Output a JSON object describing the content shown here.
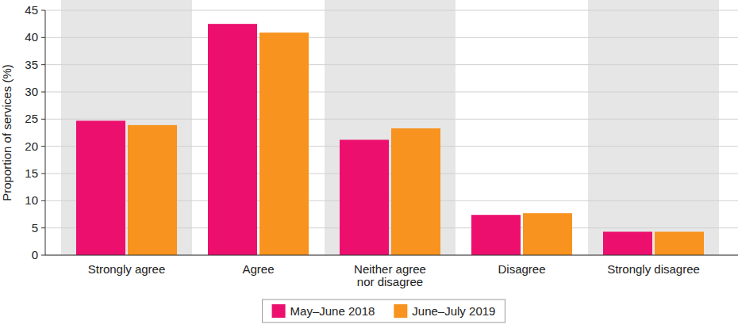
{
  "chart_data": {
    "type": "bar",
    "ylabel": "Proportion of services (%)",
    "categories": [
      "Strongly agree",
      "Agree",
      "Neither agree nor disagree",
      "Disagree",
      "Strongly disagree"
    ],
    "series": [
      {
        "name": "May–June 2018",
        "color": "#ec0f6e",
        "values": [
          24.7,
          42.5,
          21.2,
          7.4,
          4.3
        ]
      },
      {
        "name": "June–July 2019",
        "color": "#f7931e",
        "values": [
          23.9,
          40.9,
          23.3,
          7.7,
          4.3
        ]
      }
    ],
    "ylim": [
      0,
      45
    ],
    "yticks": [
      0,
      5,
      10,
      15,
      20,
      25,
      30,
      35,
      40,
      45
    ],
    "grid": true,
    "legend": "bottom"
  }
}
